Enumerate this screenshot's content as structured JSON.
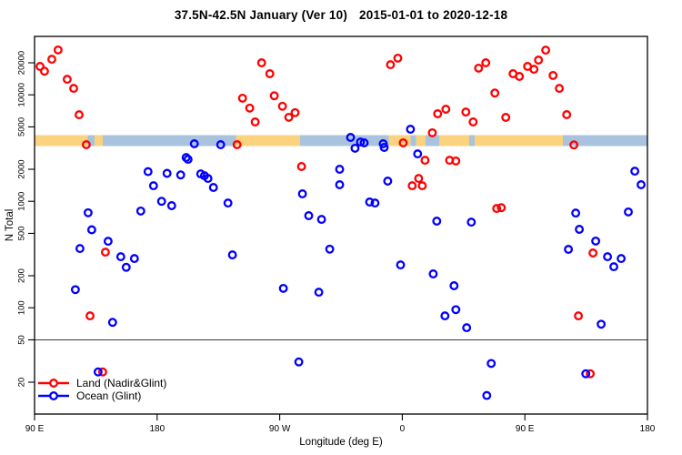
{
  "title": {
    "part1": "37.5N-42.5N January (Ver 10)",
    "part2": "2015-01-01 to 2020-12-18"
  },
  "legend": {
    "items": [
      {
        "label": "Land (Nadir&Glint)",
        "color": "#FF0000"
      },
      {
        "label": "Ocean (Glint)",
        "color": "#0000FF"
      }
    ]
  },
  "chart_data": {
    "type": "scatter",
    "title": "37.5N-42.5N January (Ver 10)  2015-01-01 to 2020-12-18",
    "xlabel": "Longitude (deg E)",
    "ylabel": "N Total",
    "x_axis": {
      "span_deg": 450,
      "note": "wrapped longitude axis starting at 90E, 90-deg ticks",
      "ticks": [
        {
          "deg": 0,
          "label": "90 E"
        },
        {
          "deg": 90,
          "label": "180"
        },
        {
          "deg": 180,
          "label": "90 W"
        },
        {
          "deg": 270,
          "label": "0"
        },
        {
          "deg": 360,
          "label": "90 E"
        },
        {
          "deg": 450,
          "label": "180"
        }
      ]
    },
    "y_axis": {
      "scale": "log",
      "range": [
        10,
        35000
      ],
      "ticks": [
        {
          "v": 20000,
          "label": "20000"
        },
        {
          "v": 10000,
          "label": "10000"
        },
        {
          "v": 5000,
          "label": "5000"
        },
        {
          "v": 2000,
          "label": "2000"
        },
        {
          "v": 1000,
          "label": "1000"
        },
        {
          "v": 500,
          "label": "500"
        },
        {
          "v": 200,
          "label": "200"
        },
        {
          "v": 100,
          "label": "100"
        },
        {
          "v": 50,
          "label": "50"
        },
        {
          "v": 20,
          "label": "20"
        }
      ]
    },
    "reference_line_y": 50,
    "coast_band": {
      "top_value": 4200,
      "bottom_value": 3300,
      "land_color": "#FBD27E",
      "ocean_color": "#A9C2DD",
      "segments": [
        {
          "from": 0,
          "to": 39,
          "surface": "land"
        },
        {
          "from": 39,
          "to": 44,
          "surface": "ocean"
        },
        {
          "from": 44,
          "to": 50,
          "surface": "land"
        },
        {
          "from": 50,
          "to": 148,
          "surface": "ocean"
        },
        {
          "from": 148,
          "to": 195,
          "surface": "land"
        },
        {
          "from": 195,
          "to": 260,
          "surface": "ocean"
        },
        {
          "from": 260,
          "to": 276,
          "surface": "land"
        },
        {
          "from": 276,
          "to": 280,
          "surface": "ocean"
        },
        {
          "from": 280,
          "to": 287,
          "surface": "land"
        },
        {
          "from": 287,
          "to": 297,
          "surface": "ocean"
        },
        {
          "from": 297,
          "to": 319,
          "surface": "land"
        },
        {
          "from": 319,
          "to": 323,
          "surface": "ocean"
        },
        {
          "from": 323,
          "to": 388,
          "surface": "land"
        },
        {
          "from": 388,
          "to": 450,
          "surface": "ocean"
        }
      ]
    },
    "series": [
      {
        "name": "Land (Nadir&Glint)",
        "color": "#FF0000",
        "points": [
          [
            4.0,
            18500
          ],
          [
            7.3,
            16700
          ],
          [
            12.7,
            21600
          ],
          [
            17.3,
            26400
          ],
          [
            24.0,
            14000
          ],
          [
            28.7,
            11500
          ],
          [
            32.7,
            6500
          ],
          [
            38.0,
            3400
          ],
          [
            40.7,
            84
          ],
          [
            50.0,
            25
          ],
          [
            52.0,
            333
          ],
          [
            148.7,
            3400
          ],
          [
            152.7,
            9300
          ],
          [
            158.0,
            7500
          ],
          [
            162.0,
            5560
          ],
          [
            166.7,
            20000
          ],
          [
            172.7,
            15800
          ],
          [
            176.0,
            9800
          ],
          [
            182.0,
            7800
          ],
          [
            186.7,
            6150
          ],
          [
            191.3,
            6800
          ],
          [
            196.0,
            2120
          ],
          [
            261.3,
            19200
          ],
          [
            266.7,
            22100
          ],
          [
            270.7,
            3540
          ],
          [
            277.3,
            1400
          ],
          [
            282.0,
            1640
          ],
          [
            284.7,
            1400
          ],
          [
            286.7,
            2430
          ],
          [
            292.0,
            4400
          ],
          [
            296.0,
            6640
          ],
          [
            302.0,
            7330
          ],
          [
            304.7,
            2430
          ],
          [
            309.3,
            2390
          ],
          [
            316.7,
            6900
          ],
          [
            322.0,
            5560
          ],
          [
            326.0,
            17800
          ],
          [
            331.3,
            20000
          ],
          [
            338.0,
            10400
          ],
          [
            339.3,
            857
          ],
          [
            342.7,
            871
          ],
          [
            346.0,
            6140
          ],
          [
            351.3,
            15800
          ],
          [
            356.0,
            14900
          ],
          [
            362.0,
            18500
          ],
          [
            366.7,
            17400
          ],
          [
            370.0,
            21200
          ],
          [
            375.3,
            26300
          ],
          [
            380.7,
            15200
          ],
          [
            385.3,
            11500
          ],
          [
            390.7,
            6520
          ],
          [
            396.0,
            3390
          ],
          [
            399.3,
            84
          ],
          [
            408.0,
            24
          ],
          [
            410.0,
            327
          ]
        ]
      },
      {
        "name": "Ocean (Glint)",
        "color": "#0000FF",
        "points": [
          [
            30.0,
            148
          ],
          [
            33.3,
            360
          ],
          [
            39.3,
            780
          ],
          [
            42.0,
            540
          ],
          [
            46.7,
            25
          ],
          [
            54.0,
            422
          ],
          [
            57.3,
            73
          ],
          [
            63.3,
            302
          ],
          [
            67.3,
            240
          ],
          [
            73.3,
            290
          ],
          [
            78.0,
            810
          ],
          [
            83.3,
            1900
          ],
          [
            87.3,
            1400
          ],
          [
            93.3,
            1000
          ],
          [
            97.3,
            1830
          ],
          [
            100.7,
            910
          ],
          [
            107.3,
            1770
          ],
          [
            111.3,
            2580
          ],
          [
            112.7,
            2480
          ],
          [
            117.3,
            3470
          ],
          [
            122.0,
            1810
          ],
          [
            124.7,
            1740
          ],
          [
            127.3,
            1640
          ],
          [
            131.3,
            1350
          ],
          [
            136.7,
            3400
          ],
          [
            142.0,
            964
          ],
          [
            145.3,
            314
          ],
          [
            182.7,
            152
          ],
          [
            194.0,
            31
          ],
          [
            196.7,
            1175
          ],
          [
            201.3,
            733
          ],
          [
            208.7,
            140
          ],
          [
            210.7,
            676
          ],
          [
            216.7,
            355
          ],
          [
            224.0,
            2000
          ],
          [
            224.0,
            1430
          ],
          [
            232.0,
            3980
          ],
          [
            235.3,
            3150
          ],
          [
            239.3,
            3600
          ],
          [
            242.0,
            3540
          ],
          [
            246.0,
            984
          ],
          [
            250.0,
            964
          ],
          [
            256.0,
            3470
          ],
          [
            256.7,
            3210
          ],
          [
            259.3,
            1550
          ],
          [
            268.7,
            253
          ],
          [
            276.0,
            4750
          ],
          [
            281.3,
            2790
          ],
          [
            292.7,
            208
          ],
          [
            295.3,
            652
          ],
          [
            301.3,
            84
          ],
          [
            308.0,
            161
          ],
          [
            309.3,
            96
          ],
          [
            317.3,
            65
          ],
          [
            320.7,
            638
          ],
          [
            332.0,
            15
          ],
          [
            335.3,
            30
          ],
          [
            392.0,
            354
          ],
          [
            397.3,
            776
          ],
          [
            400.0,
            546
          ],
          [
            404.7,
            24
          ],
          [
            412.0,
            423
          ],
          [
            416.0,
            70
          ],
          [
            420.7,
            302
          ],
          [
            425.3,
            243
          ],
          [
            430.7,
            290
          ],
          [
            436.0,
            794
          ],
          [
            440.7,
            1920
          ],
          [
            445.3,
            1430
          ]
        ]
      }
    ]
  }
}
